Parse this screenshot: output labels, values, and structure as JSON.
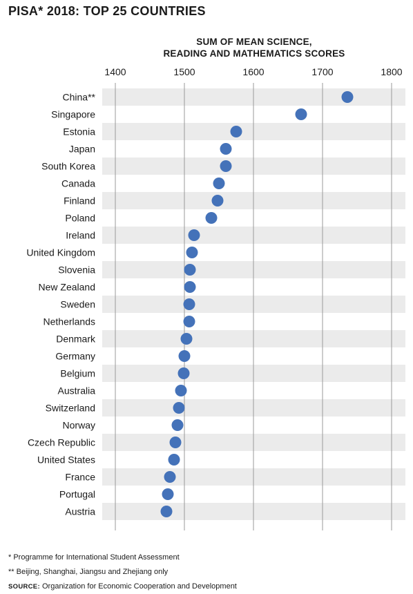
{
  "title": "PISA* 2018: TOP 25 COUNTRIES",
  "axis_caption_line1": "SUM OF MEAN SCIENCE,",
  "axis_caption_line2": "READING AND MATHEMATICS SCORES",
  "colors": {
    "dot": "#4472b9",
    "stripe": "#ebebeb",
    "grid": "#9a9a9a"
  },
  "footnotes": {
    "note1": "* Programme for International Student Assessment",
    "note2": "** Beijing, Shanghai, Jiangsu and Zhejiang only",
    "source_label": "SOURCE:",
    "source_text": "Organization for Economic Cooperation and Development"
  },
  "chart_data": {
    "type": "scatter",
    "title": "PISA* 2018: TOP 25 COUNTRIES",
    "xlabel": "SUM OF MEAN SCIENCE, READING AND MATHEMATICS SCORES",
    "ylabel": "",
    "xlim": [
      1400,
      1800
    ],
    "xticks": [
      1400,
      1500,
      1600,
      1700,
      1800
    ],
    "grid": "vertical",
    "categories": [
      "China**",
      "Singapore",
      "Estonia",
      "Japan",
      "South Korea",
      "Canada",
      "Finland",
      "Poland",
      "Ireland",
      "United Kingdom",
      "Slovenia",
      "New Zealand",
      "Sweden",
      "Netherlands",
      "Denmark",
      "Germany",
      "Belgium",
      "Australia",
      "Switzerland",
      "Norway",
      "Czech Republic",
      "United States",
      "France",
      "Portugal",
      "Austria"
    ],
    "values": [
      1736,
      1669,
      1575,
      1560,
      1560,
      1550,
      1548,
      1539,
      1514,
      1511,
      1508,
      1508,
      1507,
      1507,
      1503,
      1500,
      1499,
      1495,
      1492,
      1490,
      1487,
      1485,
      1479,
      1476,
      1474
    ]
  }
}
